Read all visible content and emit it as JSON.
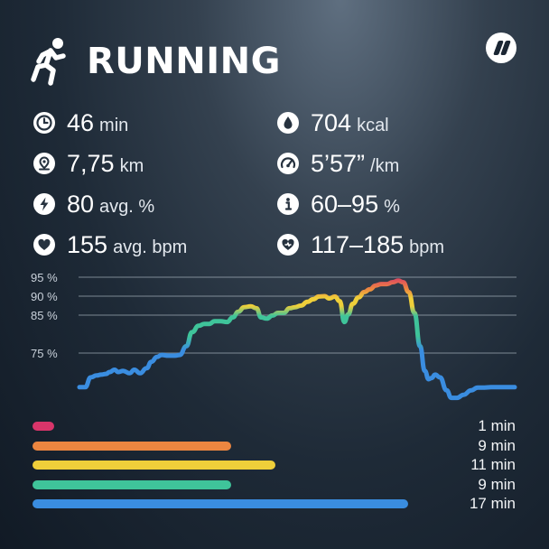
{
  "header": {
    "title": "RUNNING",
    "activity_icon": "running-person-icon",
    "brand_icon": "brand-logo-icon"
  },
  "stats": [
    {
      "icon": "clock-icon",
      "value": "46",
      "unit": "min"
    },
    {
      "icon": "water-drop-icon",
      "value": "704",
      "unit": "kcal"
    },
    {
      "icon": "map-pin-icon",
      "value": "7,75",
      "unit": "km"
    },
    {
      "icon": "speedometer-icon",
      "value": "5’57”",
      "unit": "/km"
    },
    {
      "icon": "lightning-icon",
      "value": "80",
      "unit": "avg. %"
    },
    {
      "icon": "info-icon",
      "value": "60–95",
      "unit": "%"
    },
    {
      "icon": "heart-icon",
      "value": "155",
      "unit": "avg. bpm"
    },
    {
      "icon": "heart-range-icon",
      "value": "117–185",
      "unit": "bpm"
    }
  ],
  "chart_data": {
    "type": "line",
    "yticks": [
      "95 %",
      "90 %",
      "85 %",
      "75 %"
    ],
    "ytick_values": [
      95,
      90,
      85,
      75
    ],
    "y_units": "% of max heart rate",
    "x": [
      0,
      0.6,
      1.2,
      1.8,
      2.3,
      2.8,
      3.2,
      3.7,
      4.1,
      4.6,
      5.3,
      5.8,
      6.4,
      7.1,
      7.6,
      8.2,
      8.7,
      9.4,
      10.1,
      10.6,
      11.3,
      11.9,
      12.6,
      13.2,
      13.7,
      14.3,
      14.9,
      15.6,
      16.2,
      16.8,
      17.4,
      18.1,
      18.7,
      19.2,
      19.8,
      20.4,
      21,
      21.6,
      22.2,
      22.8,
      23.4,
      24.1,
      24.7,
      25.3,
      25.9,
      26.4,
      27,
      27.5,
      28,
      28.4,
      28.9,
      29.5,
      30.1,
      30.7,
      31.3,
      31.9,
      32.5,
      33.1,
      33.7,
      34.2,
      34.8,
      35.4,
      36,
      36.5,
      36.9,
      37.2,
      37.6,
      38.1,
      38.8,
      39.3,
      39.9,
      40.6,
      41.4,
      42.1,
      42.8,
      43.5,
      44.2,
      45,
      45.6,
      46
    ],
    "y": [
      66,
      66,
      68.6,
      69.1,
      69.3,
      69.5,
      70,
      70.6,
      70,
      70.3,
      69.7,
      70.6,
      69.7,
      71,
      72.7,
      74,
      74.5,
      74.3,
      74.3,
      74.5,
      76.8,
      80.5,
      82.2,
      82.7,
      82.7,
      83.4,
      83.4,
      83.2,
      84.4,
      85.9,
      87.1,
      87.3,
      86.8,
      84.4,
      84.1,
      84.9,
      85.6,
      85.6,
      86.8,
      87.1,
      87.5,
      88.5,
      89.2,
      89.9,
      90,
      89.4,
      89.9,
      88.7,
      83.2,
      85.2,
      88,
      89.7,
      91.1,
      91.8,
      92.8,
      93.2,
      93.2,
      93.7,
      94.1,
      93.7,
      91.1,
      85.6,
      76.8,
      70.3,
      68.1,
      68.4,
      69.3,
      68.6,
      65.2,
      63.2,
      63.2,
      64,
      65.2,
      65.9,
      65.9,
      66,
      66,
      66,
      66,
      66
    ]
  },
  "zones": [
    {
      "color": "#d8356a",
      "minutes": 1,
      "label": "1 min"
    },
    {
      "color": "#ec8640",
      "minutes": 9,
      "label": "9 min"
    },
    {
      "color": "#efcf3a",
      "minutes": 11,
      "label": "11 min"
    },
    {
      "color": "#3fc49a",
      "minutes": 9,
      "label": "9 min"
    },
    {
      "color": "#3a8de0",
      "minutes": 17,
      "label": "17 min"
    }
  ],
  "colors": {
    "zone_red": "#d8356a",
    "zone_orange": "#ec8640",
    "zone_yellow": "#efcf3a",
    "zone_green": "#3fc49a",
    "zone_blue": "#3a8de0"
  }
}
